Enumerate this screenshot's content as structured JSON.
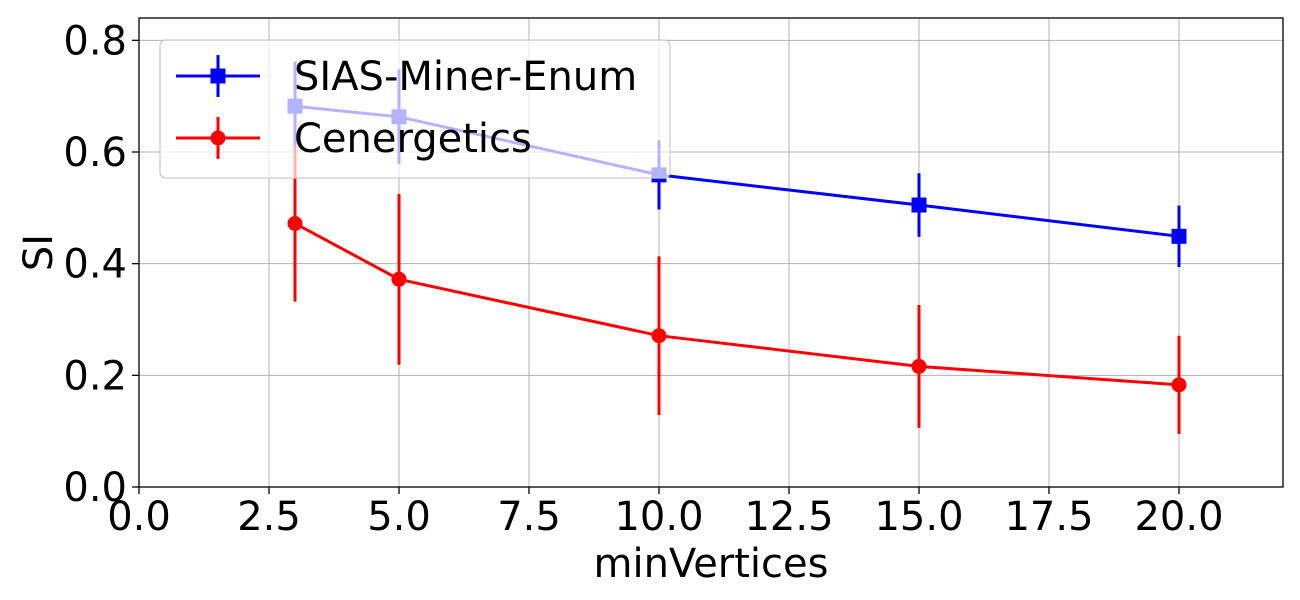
{
  "chart_data": {
    "type": "line",
    "xlabel": "minVertices",
    "ylabel": "SI",
    "xlim": [
      0,
      22
    ],
    "ylim": [
      0,
      0.84
    ],
    "xticks": [
      0.0,
      2.5,
      5.0,
      7.5,
      10.0,
      12.5,
      15.0,
      17.5,
      20.0
    ],
    "xtick_labels": [
      "0.0",
      "2.5",
      "5.0",
      "7.5",
      "10.0",
      "12.5",
      "15.0",
      "17.5",
      "20.0"
    ],
    "yticks": [
      0.0,
      0.2,
      0.4,
      0.6,
      0.8
    ],
    "ytick_labels": [
      "0.0",
      "0.2",
      "0.4",
      "0.6",
      "0.8"
    ],
    "grid": true,
    "legend": "top-left",
    "legend_opaque": true,
    "series": [
      {
        "name": "SIAS-Miner-Enum",
        "color": "#0000ff",
        "marker": "square",
        "x": [
          3,
          5,
          10,
          15,
          20
        ],
        "y": [
          0.682,
          0.663,
          0.559,
          0.505,
          0.449
        ],
        "yerr": [
          0.08,
          0.085,
          0.062,
          0.057,
          0.055
        ]
      },
      {
        "name": "Cenergetics",
        "color": "#ff0000",
        "marker": "circle",
        "x": [
          3,
          5,
          10,
          15,
          20
        ],
        "y": [
          0.472,
          0.372,
          0.271,
          0.216,
          0.183
        ],
        "yerr": [
          0.14,
          0.153,
          0.142,
          0.11,
          0.088
        ]
      }
    ]
  }
}
